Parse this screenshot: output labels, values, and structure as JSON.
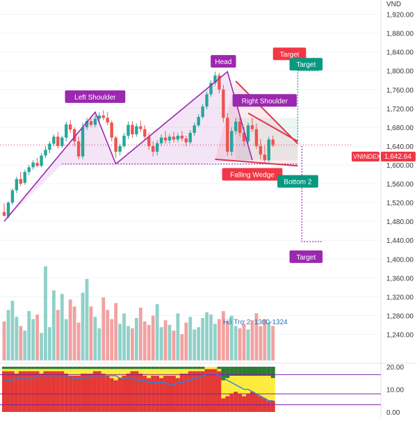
{
  "chart_data": [
    {
      "type": "candlestick",
      "currency": "VND",
      "instrument_label": "VNINDEX",
      "last_value": "1,642.64",
      "price_axis": {
        "ylim": [
          1220,
          1940
        ],
        "ticks": [
          1240,
          1280,
          1320,
          1360,
          1400,
          1440,
          1480,
          1520,
          1560,
          1600,
          1640,
          1680,
          1720,
          1760,
          1800,
          1840,
          1880,
          1920
        ],
        "tick_labels": [
          "1,240.00",
          "1,280.00",
          "1,320.00",
          "1,360.00",
          "1,400.00",
          "1,440.00",
          "1,480.00",
          "1,520.00",
          "1,560.00",
          "1,600.00",
          "1,640.00",
          "1,680.00",
          "1,720.00",
          "1,760.00",
          "1,800.00",
          "1,840.00",
          "1,880.00",
          "1,920.00"
        ]
      },
      "candles": [
        [
          1500,
          1518,
          1492,
          1490
        ],
        [
          1490,
          1522,
          1520,
          1486
        ],
        [
          1520,
          1550,
          1546,
          1515
        ],
        [
          1546,
          1575,
          1570,
          1540
        ],
        [
          1570,
          1585,
          1560,
          1555
        ],
        [
          1562,
          1590,
          1585,
          1558
        ],
        [
          1585,
          1600,
          1595,
          1578
        ],
        [
          1595,
          1610,
          1605,
          1590
        ],
        [
          1604,
          1615,
          1598,
          1595
        ],
        [
          1598,
          1625,
          1620,
          1595
        ],
        [
          1620,
          1640,
          1632,
          1615
        ],
        [
          1632,
          1650,
          1645,
          1625
        ],
        [
          1645,
          1665,
          1660,
          1640
        ],
        [
          1660,
          1670,
          1640,
          1635
        ],
        [
          1640,
          1662,
          1658,
          1636
        ],
        [
          1658,
          1692,
          1686,
          1650
        ],
        [
          1686,
          1695,
          1675,
          1668
        ],
        [
          1676,
          1680,
          1650,
          1640
        ],
        [
          1650,
          1660,
          1618,
          1612
        ],
        [
          1618,
          1690,
          1680,
          1612
        ],
        [
          1680,
          1700,
          1693,
          1674
        ],
        [
          1693,
          1703,
          1685,
          1680
        ],
        [
          1685,
          1705,
          1698,
          1680
        ],
        [
          1698,
          1712,
          1705,
          1690
        ],
        [
          1705,
          1716,
          1700,
          1695
        ],
        [
          1700,
          1712,
          1690,
          1684
        ],
        [
          1690,
          1694,
          1658,
          1650
        ],
        [
          1658,
          1662,
          1628,
          1615
        ],
        [
          1628,
          1645,
          1640,
          1620
        ],
        [
          1640,
          1668,
          1662,
          1636
        ],
        [
          1662,
          1692,
          1685,
          1655
        ],
        [
          1685,
          1693,
          1665,
          1658
        ],
        [
          1665,
          1688,
          1682,
          1660
        ],
        [
          1682,
          1694,
          1676,
          1670
        ],
        [
          1676,
          1684,
          1660,
          1652
        ],
        [
          1660,
          1668,
          1640,
          1632
        ],
        [
          1640,
          1650,
          1628,
          1618
        ],
        [
          1628,
          1652,
          1646,
          1620
        ],
        [
          1646,
          1665,
          1658,
          1640
        ],
        [
          1658,
          1672,
          1652,
          1645
        ],
        [
          1652,
          1666,
          1660,
          1645
        ],
        [
          1660,
          1670,
          1654,
          1648
        ],
        [
          1654,
          1668,
          1662,
          1648
        ],
        [
          1662,
          1672,
          1656,
          1650
        ],
        [
          1656,
          1662,
          1648,
          1640
        ],
        [
          1648,
          1674,
          1668,
          1644
        ],
        [
          1668,
          1690,
          1684,
          1662
        ],
        [
          1684,
          1708,
          1702,
          1680
        ],
        [
          1702,
          1730,
          1724,
          1698
        ],
        [
          1724,
          1756,
          1750,
          1718
        ],
        [
          1750,
          1780,
          1774,
          1745
        ],
        [
          1774,
          1798,
          1790,
          1768
        ],
        [
          1790,
          1796,
          1760,
          1752
        ],
        [
          1760,
          1770,
          1700,
          1690
        ],
        [
          1700,
          1710,
          1628,
          1620
        ],
        [
          1628,
          1680,
          1672,
          1620
        ],
        [
          1672,
          1700,
          1692,
          1665
        ],
        [
          1692,
          1705,
          1668,
          1660
        ],
        [
          1668,
          1680,
          1650,
          1640
        ],
        [
          1650,
          1690,
          1684,
          1645
        ],
        [
          1684,
          1700,
          1676,
          1670
        ],
        [
          1676,
          1688,
          1640,
          1634
        ],
        [
          1640,
          1655,
          1622,
          1612
        ],
        [
          1622,
          1640,
          1610,
          1605
        ],
        [
          1610,
          1660,
          1654,
          1606
        ],
        [
          1654,
          1662,
          1642,
          1638
        ]
      ],
      "volume": [
        34,
        44,
        52,
        38,
        30,
        26,
        43,
        36,
        40,
        24,
        82,
        29,
        61,
        44,
        58,
        36,
        53,
        47,
        33,
        59,
        71,
        47,
        38,
        28,
        55,
        44,
        36,
        50,
        32,
        41,
        30,
        28,
        37,
        46,
        34,
        31,
        39,
        49,
        29,
        35,
        31,
        26,
        41,
        23,
        33,
        38,
        27,
        29,
        37,
        42,
        40,
        32,
        36,
        43,
        34,
        39,
        30,
        28,
        32,
        27,
        35,
        41,
        30,
        36,
        33,
        30
      ],
      "volume_support_label": "Hỗ Trợ 2: 1300-1324",
      "pattern": {
        "left_shoulder": [
          [
            0,
            1480
          ],
          [
            22,
            1712
          ],
          [
            27,
            1602
          ]
        ],
        "head": [
          [
            27,
            1602
          ],
          [
            54,
            1798
          ],
          [
            60,
            1610
          ]
        ],
        "right_shoulder_lines": [
          [
            [
              56,
              1778
            ],
            [
              71,
              1645
            ]
          ],
          [
            [
              59,
              1710
            ],
            [
              71,
              1650
            ]
          ]
        ],
        "neckline": [
          [
            14,
            1602
          ],
          [
            71,
            1602
          ]
        ],
        "wedge_lower": [
          [
            51,
            1612
          ],
          [
            71,
            1598
          ]
        ],
        "target_projection": [
          [
            72,
            1640
          ],
          [
            72,
            1437
          ],
          [
            77,
            1437
          ]
        ],
        "target_up": [
          [
            71,
            1652
          ],
          [
            71,
            1800
          ],
          [
            76,
            1800
          ]
        ]
      },
      "annotations": [
        {
          "text": "Left Shoulder",
          "color": "#9c27b0",
          "anchor": [
            22,
            1745
          ]
        },
        {
          "text": "Head",
          "color": "#9c27b0",
          "anchor": [
            53,
            1820
          ]
        },
        {
          "text": "Right Shoulder",
          "color": "#9c27b0",
          "anchor": [
            63,
            1737
          ]
        },
        {
          "text": "Falling Wedge",
          "color": "#f23645",
          "anchor": [
            60,
            1580
          ]
        },
        {
          "text": "Bottom 2",
          "color": "#089981",
          "anchor": [
            71,
            1565
          ]
        },
        {
          "text": "Target",
          "color": "#f23645",
          "anchor": [
            69,
            1836
          ]
        },
        {
          "text": "Target",
          "color": "#089981",
          "anchor": [
            73,
            1814
          ]
        },
        {
          "text": "Target",
          "color": "#9c27b0",
          "anchor": [
            73,
            1405
          ]
        }
      ]
    },
    {
      "type": "indicator",
      "ylim": [
        0,
        20
      ],
      "tick_labels": [
        "20.00",
        "10.00",
        "0.00"
      ],
      "ticks": [
        20,
        10,
        0
      ],
      "levels": [
        16.5,
        8.0,
        3.2
      ],
      "line": [
        14,
        14,
        14,
        15,
        15,
        15,
        15,
        15,
        16,
        16,
        16,
        16,
        16,
        16,
        16,
        16,
        15,
        15,
        15,
        15,
        15,
        16,
        16,
        16,
        16,
        16,
        16,
        16,
        15,
        15,
        15,
        15,
        14,
        14,
        14,
        13,
        13,
        13,
        13,
        13,
        12,
        12,
        13,
        13,
        14,
        14,
        15,
        15,
        16,
        17,
        17,
        17,
        16,
        15,
        14,
        13,
        12,
        11,
        10,
        10,
        9,
        8,
        7,
        6,
        5,
        5
      ],
      "red": [
        18,
        18,
        18,
        17,
        18,
        18,
        18,
        18,
        18,
        17,
        18,
        18,
        18,
        18,
        18,
        17,
        16,
        16,
        16,
        17,
        17,
        17,
        18,
        18,
        17,
        16,
        15,
        14,
        15,
        16,
        17,
        18,
        18,
        17,
        16,
        15,
        16,
        16,
        15,
        16,
        16,
        16,
        15,
        17,
        17,
        18,
        18,
        18,
        18,
        19,
        19,
        19,
        18,
        6,
        7,
        8,
        9,
        8,
        7,
        8,
        9,
        8,
        7,
        6,
        5,
        5
      ],
      "yellow": [
        1,
        1,
        1,
        2,
        1,
        1,
        1,
        1,
        1,
        2,
        1,
        1,
        1,
        1,
        1,
        2,
        3,
        3,
        3,
        2,
        2,
        2,
        1,
        1,
        2,
        3,
        4,
        5,
        4,
        3,
        2,
        1,
        1,
        2,
        3,
        4,
        3,
        3,
        4,
        3,
        3,
        3,
        4,
        2,
        2,
        1,
        1,
        1,
        1,
        1,
        1,
        1,
        1,
        8,
        8,
        8,
        7,
        8,
        9,
        8,
        7,
        8,
        9,
        10,
        11,
        10
      ]
    }
  ],
  "colors": {
    "up": "#26a69a",
    "down": "#ef5350",
    "volume_up": "#8fd1c9",
    "volume_down": "#f2a1a1",
    "pattern_purple": "#9c27b0",
    "wedge_red": "#e0334f",
    "target_green": "#089981"
  }
}
